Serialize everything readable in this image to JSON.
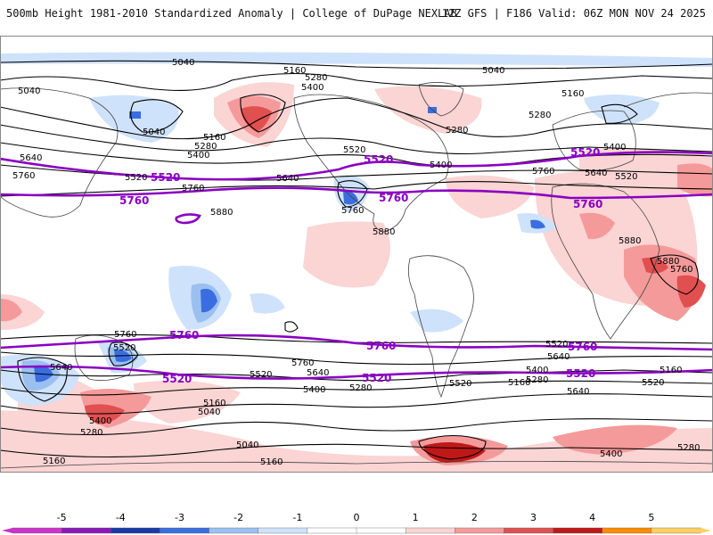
{
  "header": {
    "title": "500mb Height 1981-2010 Standardized Anomaly | College of DuPage NEXLAB",
    "run_info": "12Z GFS | F186 Valid: 06Z MON NOV 24 2025"
  },
  "colorbar": {
    "ticks": [
      "-5",
      "-4",
      "-3",
      "-2",
      "-1",
      "0",
      "1",
      "2",
      "3",
      "4",
      "5"
    ],
    "colors": [
      "#cc33cc",
      "#8a18b8",
      "#1a3aa8",
      "#3a6ee0",
      "#9bc0f0",
      "#cfe2fb",
      "#ffffff",
      "#ffffff",
      "#fbd4d4",
      "#f59a9a",
      "#e05050",
      "#c01818",
      "#ff8c00",
      "#ffd060"
    ]
  },
  "contour_labels": [
    {
      "id": "c1",
      "text": "5040"
    },
    {
      "id": "c2",
      "text": "5160"
    },
    {
      "id": "c3",
      "text": "5040"
    },
    {
      "id": "c4",
      "text": "5280"
    },
    {
      "id": "c5",
      "text": "5400"
    },
    {
      "id": "c6",
      "text": "5040"
    },
    {
      "id": "c7",
      "text": "5160"
    },
    {
      "id": "c8",
      "text": "5280"
    },
    {
      "id": "c9",
      "text": "5040"
    },
    {
      "id": "c10",
      "text": "5160"
    },
    {
      "id": "c11",
      "text": "5280"
    },
    {
      "id": "c12",
      "text": "5400"
    },
    {
      "id": "c13",
      "text": "5640"
    },
    {
      "id": "c14",
      "text": "5760"
    },
    {
      "id": "c15",
      "text": "5520"
    },
    {
      "id": "c16",
      "text": "5640"
    },
    {
      "id": "c17",
      "text": "5760"
    },
    {
      "id": "c18",
      "text": "5880"
    },
    {
      "id": "c19",
      "text": "5520"
    },
    {
      "id": "c20",
      "text": "5400"
    },
    {
      "id": "c21",
      "text": "5760"
    },
    {
      "id": "c22",
      "text": "5880"
    },
    {
      "id": "c23",
      "text": "5640"
    },
    {
      "id": "c24",
      "text": "5520"
    },
    {
      "id": "c25",
      "text": "5400"
    },
    {
      "id": "c26",
      "text": "5760"
    },
    {
      "id": "c27",
      "text": "5880"
    },
    {
      "id": "c28",
      "text": "5880"
    },
    {
      "id": "c29",
      "text": "5280"
    },
    {
      "id": "c30",
      "text": "5760"
    },
    {
      "id": "c31",
      "text": "5520"
    },
    {
      "id": "c32",
      "text": "5640"
    },
    {
      "id": "c33",
      "text": "5760"
    },
    {
      "id": "c34",
      "text": "5640"
    },
    {
      "id": "c35",
      "text": "5520"
    },
    {
      "id": "c36",
      "text": "5400"
    },
    {
      "id": "c37",
      "text": "5280"
    },
    {
      "id": "c38",
      "text": "5160"
    },
    {
      "id": "c39",
      "text": "5040"
    },
    {
      "id": "c40",
      "text": "5400"
    },
    {
      "id": "c41",
      "text": "5280"
    },
    {
      "id": "c42",
      "text": "5160"
    },
    {
      "id": "c43",
      "text": "5040"
    },
    {
      "id": "c44",
      "text": "5160"
    },
    {
      "id": "c45",
      "text": "5520"
    },
    {
      "id": "c46",
      "text": "5640"
    },
    {
      "id": "c47",
      "text": "5400"
    },
    {
      "id": "c48",
      "text": "5280"
    },
    {
      "id": "c49",
      "text": "5520"
    },
    {
      "id": "c50",
      "text": "5760"
    },
    {
      "id": "c51",
      "text": "5640"
    },
    {
      "id": "c52",
      "text": "5400"
    },
    {
      "id": "c53",
      "text": "5280"
    },
    {
      "id": "c54",
      "text": "5160"
    },
    {
      "id": "c55",
      "text": "5160"
    },
    {
      "id": "c56",
      "text": "5520"
    }
  ],
  "highlight_labels": [
    {
      "id": "h1",
      "text": "5520"
    },
    {
      "id": "h2",
      "text": "5760"
    },
    {
      "id": "h3",
      "text": "5520"
    },
    {
      "id": "h4",
      "text": "5760"
    },
    {
      "id": "h5",
      "text": "5520"
    },
    {
      "id": "h6",
      "text": "5760"
    },
    {
      "id": "h7",
      "text": "5760"
    },
    {
      "id": "h8",
      "text": "5520"
    },
    {
      "id": "h9",
      "text": "5760"
    },
    {
      "id": "h10",
      "text": "5520"
    },
    {
      "id": "h11",
      "text": "5760"
    },
    {
      "id": "h12",
      "text": "5520"
    }
  ]
}
